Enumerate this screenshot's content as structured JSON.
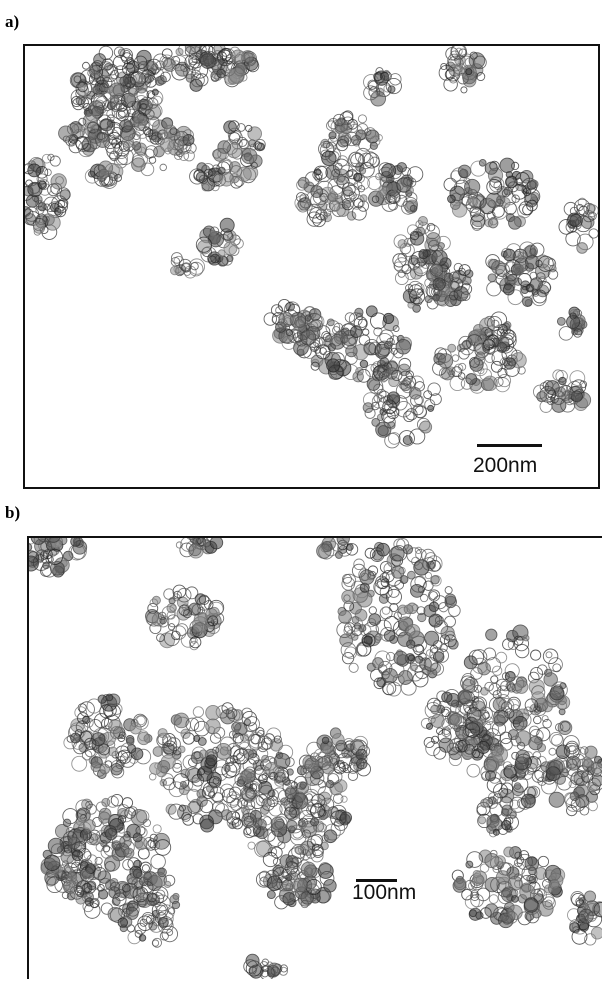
{
  "figure": {
    "panels": [
      {
        "label": "a)",
        "scale_bar": "200nm"
      },
      {
        "label": "b)",
        "scale_bar": "100nm"
      }
    ]
  }
}
